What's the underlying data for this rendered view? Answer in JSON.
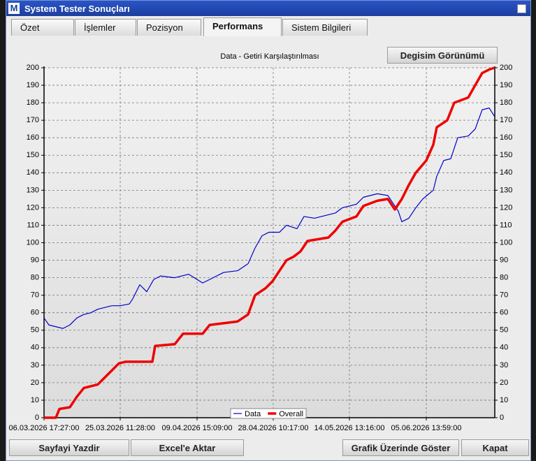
{
  "window": {
    "title": "System Tester Sonuçları",
    "logo": "M"
  },
  "tabs": [
    "Özet",
    "İşlemler",
    "Pozisyon",
    "Performans",
    "Sistem Bilgileri"
  ],
  "active_tab": 3,
  "change_view_button": "Degisim Görünümü",
  "buttons": [
    "Sayfayi Yazdir",
    "Excel'e Aktar",
    "Grafik Üzerinde Göster",
    "Kapat"
  ],
  "chart_data": {
    "type": "line",
    "title": "Data - Getiri Karşılaştırılması",
    "xlim": [
      0,
      645
    ],
    "xticks": [
      {
        "value": 0,
        "label": "06.03.2026 17:27:00"
      },
      {
        "value": 109,
        "label": "25.03.2026 11:28:00"
      },
      {
        "value": 219,
        "label": "09.04.2026 15:09:00"
      },
      {
        "value": 328,
        "label": "28.04.2026 10:17:00"
      },
      {
        "value": 437,
        "label": "14.05.2026 13:16:00"
      },
      {
        "value": 547,
        "label": "05.06.2026 13:59:00"
      }
    ],
    "ylim": [
      0,
      200
    ],
    "yticks": [
      0,
      10,
      20,
      30,
      40,
      50,
      60,
      70,
      80,
      90,
      100,
      110,
      120,
      130,
      140,
      150,
      160,
      170,
      180,
      190,
      200
    ],
    "grid": true,
    "legend": "bottom",
    "series": [
      {
        "name": "Data",
        "color": "#0000cc",
        "width": 1.2,
        "x": [
          0,
          7,
          17,
          27,
          37,
          47,
          57,
          67,
          77,
          87,
          97,
          109,
          122,
          127,
          137,
          147,
          157,
          167,
          187,
          207,
          227,
          237,
          257,
          277,
          292,
          302,
          312,
          322,
          337,
          347,
          362,
          372,
          387,
          407,
          417,
          427,
          447,
          457,
          477,
          492,
          507,
          512,
          522,
          532,
          542,
          557,
          562,
          572,
          582,
          592,
          607,
          617,
          627,
          637,
          645
        ],
        "values": [
          57,
          53,
          52,
          51,
          53,
          57,
          59,
          60,
          62,
          63,
          64,
          64,
          65,
          68,
          76,
          72,
          79,
          81,
          80,
          82,
          77,
          79,
          83,
          84,
          88,
          97,
          104,
          106,
          106,
          110,
          108,
          115,
          114,
          116,
          117,
          120,
          122,
          126,
          128,
          127,
          118,
          112,
          114,
          120,
          125,
          130,
          138,
          147,
          148,
          160,
          161,
          165,
          176,
          177,
          172
        ]
      },
      {
        "name": "Overall",
        "color": "#ee0000",
        "width": 3.5,
        "x": [
          0,
          17,
          22,
          37,
          47,
          57,
          77,
          87,
          97,
          107,
          117,
          155,
          159,
          187,
          199,
          227,
          237,
          257,
          277,
          292,
          302,
          317,
          327,
          337,
          347,
          357,
          367,
          377,
          392,
          407,
          417,
          427,
          447,
          457,
          477,
          492,
          502,
          512,
          522,
          532,
          547,
          557,
          562,
          577,
          587,
          607,
          617,
          627,
          637,
          645
        ],
        "values": [
          0,
          0,
          5,
          6,
          12,
          17,
          19,
          23,
          27,
          31,
          32,
          32,
          41,
          42,
          48,
          48,
          53,
          54,
          55,
          59,
          70,
          74,
          78,
          84,
          90,
          92,
          95,
          101,
          102,
          103,
          107,
          112,
          115,
          121,
          124,
          125,
          119,
          125,
          133,
          140,
          147,
          156,
          166,
          170,
          180,
          183,
          190,
          197,
          199,
          200
        ]
      }
    ]
  }
}
